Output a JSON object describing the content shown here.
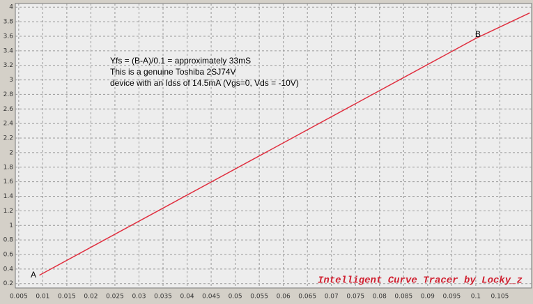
{
  "chart_data": {
    "type": "line",
    "annotations": [
      "Yfs = (B-A)/0.1 = approximately 33mS",
      "This is a genuine Toshiba 2SJ74V",
      "device with an Idss of 14.5mA (Vgs=0, Vds = -10V)"
    ],
    "point_labels": [
      "A",
      "B"
    ],
    "watermark": "Intelligent Curve Tracer by Locky_z",
    "x": [
      0.0093,
      0.1,
      0.1112
    ],
    "series": [
      {
        "color": "#e03040",
        "values": [
          0.315,
          3.57,
          3.92
        ]
      }
    ],
    "xlim": [
      0.0043,
      0.1116
    ],
    "ylim": [
      0.14,
      4.05
    ],
    "xticks": [
      0.005,
      0.01,
      0.015,
      0.02,
      0.025,
      0.03,
      0.035,
      0.04,
      0.045,
      0.05,
      0.055,
      0.06,
      0.065,
      0.07,
      0.075,
      0.08,
      0.085,
      0.09,
      0.095,
      0.1,
      0.105
    ],
    "yticks": [
      0.2,
      0.4,
      0.6,
      0.8,
      1,
      1.2,
      1.4,
      1.6,
      1.8,
      2,
      2.2,
      2.4,
      2.6,
      2.8,
      3,
      3.2,
      3.4,
      3.6,
      3.8,
      4
    ],
    "grid": true
  }
}
